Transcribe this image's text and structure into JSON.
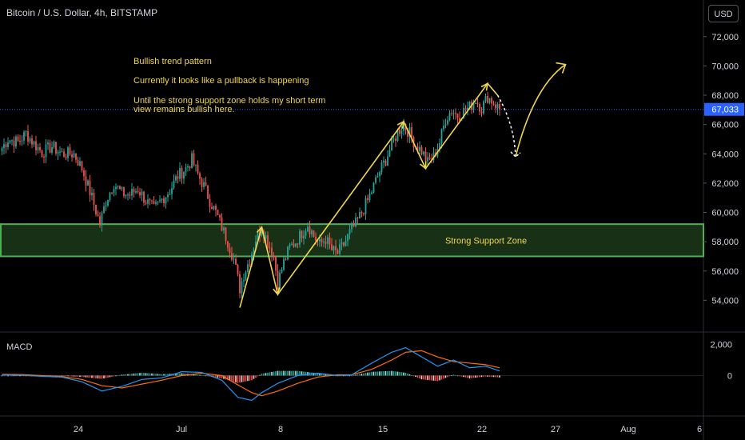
{
  "header": {
    "symbol": "Bitcoin / U.S. Dollar, 4h, BITSTAMP",
    "currency_button": "USD"
  },
  "annotations": {
    "line1": "Bullish trend pattern",
    "line2": "Currently it looks like a pullback is happening",
    "line3a": "Until the strong support zone holds my short term",
    "line3b": "view remains bullish here.",
    "support_zone": "Strong Support Zone"
  },
  "macd_panel": {
    "label": "MACD",
    "y_ticks": [
      "2,000",
      "0"
    ]
  },
  "colors": {
    "up": "#26a69a",
    "down": "#ef5350",
    "annotation": "#f0d64c",
    "support_fill": "#1c3a1a",
    "support_border": "#4caf50",
    "last_price_tag": "#2962ff",
    "macd_line": "#2196f3",
    "signal_line": "#ff6d00"
  },
  "chart_data": {
    "type": "candlestick",
    "title": "Bitcoin / U.S. Dollar, 4h, BITSTAMP",
    "x_tick_labels": [
      "24",
      "Jul",
      "8",
      "15",
      "22",
      "27",
      "Aug",
      "6"
    ],
    "y_tick_labels": [
      "72,000",
      "70,000",
      "68,000",
      "66,000",
      "64,000",
      "62,000",
      "60,000",
      "58,000",
      "56,000",
      "54,000"
    ],
    "ylim": [
      52000,
      74500
    ],
    "last_price": 67033,
    "last_price_label": "67,033",
    "support_zone": [
      57000,
      59200
    ],
    "price_path": [
      [
        0,
        64400
      ],
      [
        3,
        65000
      ],
      [
        8,
        64800
      ],
      [
        12,
        65400
      ],
      [
        16,
        64700
      ],
      [
        20,
        64100
      ],
      [
        25,
        64500
      ],
      [
        30,
        64000
      ],
      [
        36,
        64000
      ],
      [
        40,
        63000
      ],
      [
        45,
        61000
      ],
      [
        49,
        59200
      ],
      [
        52,
        60800
      ],
      [
        56,
        62000
      ],
      [
        60,
        61300
      ],
      [
        64,
        61200
      ],
      [
        68,
        61600
      ],
      [
        72,
        60800
      ],
      [
        76,
        60200
      ],
      [
        80,
        60900
      ],
      [
        84,
        61500
      ],
      [
        88,
        62500
      ],
      [
        92,
        63000
      ],
      [
        95,
        63600
      ],
      [
        98,
        62600
      ],
      [
        101,
        61800
      ],
      [
        104,
        60800
      ],
      [
        107,
        60000
      ],
      [
        110,
        59000
      ],
      [
        113,
        58000
      ],
      [
        116,
        56800
      ],
      [
        119,
        54800
      ],
      [
        121,
        55800
      ],
      [
        124,
        56800
      ],
      [
        127,
        58200
      ],
      [
        130,
        59000
      ],
      [
        133,
        58000
      ],
      [
        136,
        57000
      ],
      [
        138,
        55200
      ],
      [
        141,
        56600
      ],
      [
        144,
        57600
      ],
      [
        147,
        58000
      ],
      [
        150,
        58600
      ],
      [
        153,
        59200
      ],
      [
        156,
        58400
      ],
      [
        159,
        57800
      ],
      [
        162,
        58200
      ],
      [
        165,
        57400
      ],
      [
        168,
        57200
      ],
      [
        171,
        57800
      ],
      [
        174,
        58600
      ],
      [
        177,
        59200
      ],
      [
        180,
        60000
      ],
      [
        183,
        60800
      ],
      [
        186,
        61800
      ],
      [
        189,
        62800
      ],
      [
        192,
        63600
      ],
      [
        195,
        64600
      ],
      [
        198,
        65500
      ],
      [
        201,
        66000
      ],
      [
        204,
        65400
      ],
      [
        207,
        64600
      ],
      [
        210,
        64200
      ],
      [
        213,
        63400
      ],
      [
        216,
        63800
      ],
      [
        219,
        64800
      ],
      [
        222,
        66400
      ],
      [
        225,
        67000
      ],
      [
        228,
        66600
      ],
      [
        231,
        66900
      ],
      [
        234,
        67200
      ],
      [
        237,
        67700
      ],
      [
        240,
        67100
      ],
      [
        243,
        67900
      ],
      [
        246,
        67500
      ],
      [
        249,
        67033
      ]
    ],
    "drawings": [
      {
        "type": "polyline",
        "points": [
          [
            119,
            53500
          ],
          [
            130,
            59000
          ],
          [
            138,
            54400
          ],
          [
            201,
            66200
          ],
          [
            212,
            63000
          ],
          [
            243,
            68800
          ],
          [
            248,
            68000
          ]
        ]
      },
      {
        "type": "dashed-arrow",
        "points": [
          [
            248,
            68000
          ],
          [
            254,
            66000
          ],
          [
            257,
            63800
          ]
        ]
      },
      {
        "type": "arrow",
        "points": [
          [
            257,
            63800
          ],
          [
            266,
            67500
          ],
          [
            282,
            70100
          ]
        ]
      }
    ],
    "macd": {
      "ylim": [
        -2400,
        2600
      ],
      "macd_line": [
        [
          0,
          50
        ],
        [
          10,
          20
        ],
        [
          20,
          -50
        ],
        [
          30,
          -100
        ],
        [
          40,
          -400
        ],
        [
          50,
          -1000
        ],
        [
          60,
          -700
        ],
        [
          70,
          -250
        ],
        [
          80,
          -150
        ],
        [
          90,
          250
        ],
        [
          100,
          200
        ],
        [
          110,
          -300
        ],
        [
          118,
          -1400
        ],
        [
          125,
          -1600
        ],
        [
          130,
          -1100
        ],
        [
          138,
          -500
        ],
        [
          148,
          0
        ],
        [
          158,
          150
        ],
        [
          168,
          0
        ],
        [
          175,
          50
        ],
        [
          185,
          800
        ],
        [
          195,
          1500
        ],
        [
          202,
          1800
        ],
        [
          210,
          1200
        ],
        [
          218,
          600
        ],
        [
          226,
          1000
        ],
        [
          234,
          500
        ],
        [
          242,
          600
        ],
        [
          249,
          300
        ]
      ],
      "signal_line": [
        [
          0,
          80
        ],
        [
          10,
          60
        ],
        [
          20,
          0
        ],
        [
          30,
          -60
        ],
        [
          40,
          -250
        ],
        [
          50,
          -650
        ],
        [
          60,
          -800
        ],
        [
          70,
          -550
        ],
        [
          80,
          -300
        ],
        [
          90,
          0
        ],
        [
          100,
          150
        ],
        [
          110,
          0
        ],
        [
          118,
          -600
        ],
        [
          125,
          -1100
        ],
        [
          130,
          -1300
        ],
        [
          138,
          -1000
        ],
        [
          148,
          -500
        ],
        [
          158,
          -100
        ],
        [
          168,
          50
        ],
        [
          175,
          50
        ],
        [
          185,
          400
        ],
        [
          195,
          1000
        ],
        [
          202,
          1500
        ],
        [
          210,
          1600
        ],
        [
          218,
          1200
        ],
        [
          226,
          900
        ],
        [
          234,
          800
        ],
        [
          242,
          700
        ],
        [
          249,
          500
        ]
      ]
    }
  }
}
